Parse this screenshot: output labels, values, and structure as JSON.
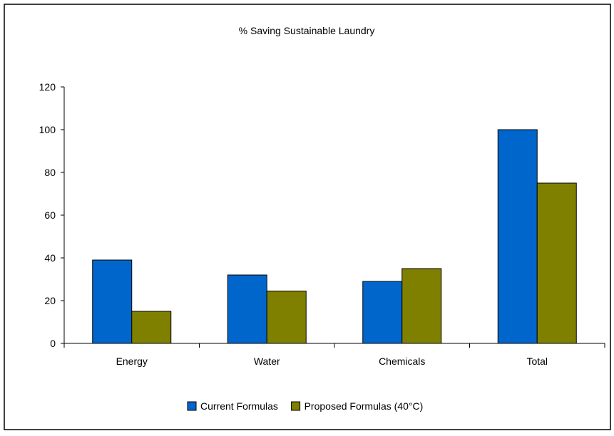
{
  "chart_data": {
    "type": "bar",
    "title": "% Saving Sustainable Laundry",
    "xlabel": "",
    "ylabel": "",
    "categories": [
      "Energy",
      "Water",
      "Chemicals",
      "Total"
    ],
    "series": [
      {
        "name": "Current Formulas",
        "values": [
          39,
          32,
          29,
          100
        ],
        "color": "#0066CC"
      },
      {
        "name": "Proposed Formulas (40°C)",
        "values": [
          15,
          24.5,
          35,
          75
        ],
        "color": "#808000"
      }
    ],
    "ylim": [
      0,
      120
    ],
    "yticks": [
      0,
      20,
      40,
      60,
      80,
      100,
      120
    ],
    "grid": false,
    "legend_position": "bottom"
  }
}
